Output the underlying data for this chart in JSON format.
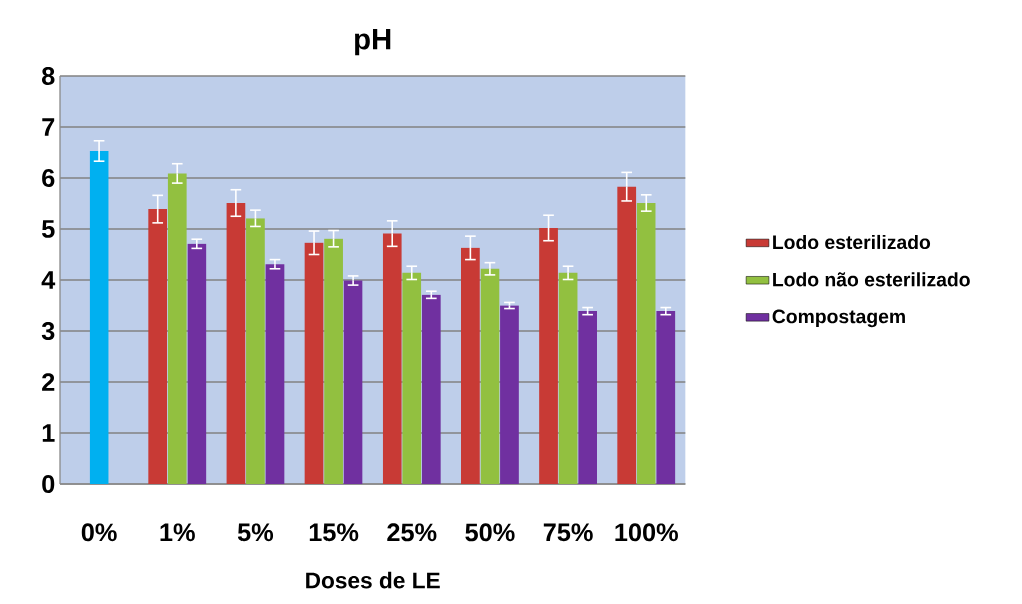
{
  "chart_data": {
    "type": "bar",
    "title": "pH",
    "xlabel": "Doses de LE",
    "categories": [
      "0%",
      "1%",
      "5%",
      "15%",
      "25%",
      "50%",
      "75%",
      "100%"
    ],
    "series": [
      {
        "name": "Lodo esterilizado",
        "color": "#c83a35",
        "values": [
          null,
          5.39,
          5.51,
          4.73,
          4.91,
          4.63,
          5.02,
          5.83
        ],
        "errors": [
          null,
          0.27,
          0.26,
          0.23,
          0.25,
          0.23,
          0.25,
          0.28
        ]
      },
      {
        "name": "Lodo não esterilizado",
        "color": "#92c040",
        "colors": [
          "#00b0f0",
          "#92c040",
          "#92c040",
          "#92c040",
          "#92c040",
          "#92c040",
          "#92c040",
          "#92c040"
        ],
        "values": [
          6.53,
          6.09,
          5.21,
          4.81,
          4.14,
          4.22,
          4.14,
          5.51
        ],
        "errors": [
          0.2,
          0.19,
          0.16,
          0.16,
          0.13,
          0.12,
          0.13,
          0.16
        ]
      },
      {
        "name": "Compostagem",
        "color": "#7030a0",
        "values": [
          null,
          4.71,
          4.31,
          3.99,
          3.71,
          3.5,
          3.39,
          3.39
        ],
        "errors": [
          null,
          0.09,
          0.09,
          0.09,
          0.07,
          0.06,
          0.07,
          0.07
        ]
      }
    ],
    "ylim": [
      0,
      8
    ],
    "yticks": [
      0,
      1,
      2,
      3,
      4,
      5,
      6,
      7,
      8
    ],
    "grid": "y",
    "legend": "right"
  }
}
